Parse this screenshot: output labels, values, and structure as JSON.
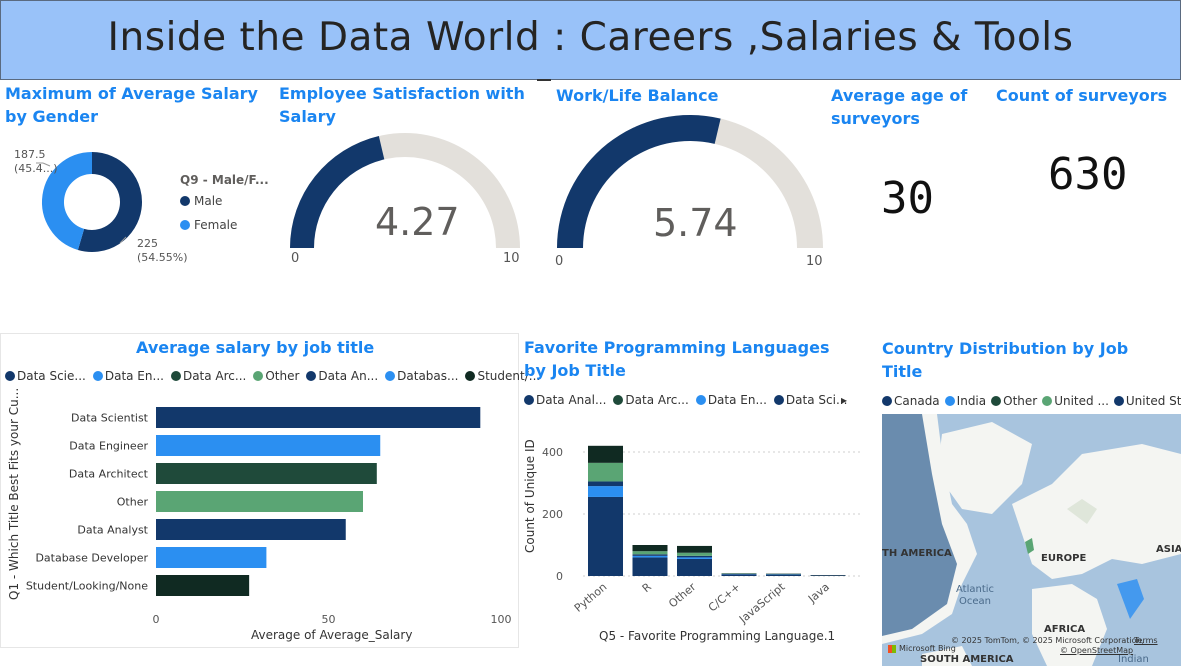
{
  "header": {
    "title": "Inside the Data World : Careers ,Salaries & Tools"
  },
  "colors": {
    "navy": "#12386b",
    "blue": "#2b8ff1",
    "dark_green": "#1f4a3a",
    "green": "#5aa574",
    "black_green": "#102a22",
    "grey": "#e3e0db"
  },
  "donut": {
    "title": "Maximum of Average Salary by Gender",
    "legend_title": "Q9 - Male/F...",
    "labels": [
      {
        "name": "Male",
        "value": "225",
        "pct": "(54.55%)"
      },
      {
        "name": "Female",
        "value": "187.5",
        "pct": "(45.4...)"
      }
    ]
  },
  "gauge_satisfaction": {
    "title": "Employee Satisfaction with Salary",
    "value_text": "4.27",
    "min": "0",
    "max": "10",
    "value": 4.27
  },
  "gauge_balance": {
    "title": "Work/Life Balance",
    "value_text": "5.74",
    "min": "0",
    "max": "10",
    "value": 5.74
  },
  "kpi_age": {
    "title": "Average age of surveyors",
    "value": "30"
  },
  "kpi_count": {
    "title": "Count of surveyors",
    "value": "630"
  },
  "salary_chart": {
    "title": "Average salary by job title",
    "legend": [
      "Data Scie...",
      "Data En...",
      "Data Arc...",
      "Other",
      "Data An...",
      "Databas...",
      "Student/..."
    ],
    "ylabel": "Q1 - Which Title Best Fits your Cu...",
    "xlabel": "Average of Average_Salary",
    "ticks": [
      "0",
      "50",
      "100"
    ]
  },
  "lang_chart": {
    "title": "Favorite Programming Languages by Job Title",
    "legend": [
      "Data Anal...",
      "Data Arc...",
      "Data En...",
      "Data Sci..."
    ],
    "ylabel": "Count of Unique ID",
    "xlabel": "Q5 - Favorite Programming Language.1",
    "ticks": [
      "0",
      "200",
      "400"
    ]
  },
  "map_chart": {
    "title": "Country Distribution by Job Title",
    "legend": [
      "Canada",
      "India",
      "Other",
      "United ...",
      "United St..."
    ],
    "labels": {
      "america": "TH AMERICA",
      "europe": "EUROPE",
      "asia": "ASIA",
      "atlantic": "Atlantic\nOcean",
      "africa": "AFRICA",
      "south_america": "SOUTH AMERICA",
      "indian": "Indian"
    },
    "bing": "Microsoft Bing",
    "copyright": "© 2025 TomTom, © 2025 Microsoft Corporation,",
    "terms": "Terms",
    "osm": "© OpenStreetMap"
  },
  "chart_data": [
    {
      "type": "pie",
      "title": "Maximum of Average Salary by Gender",
      "categories": [
        "Male",
        "Female"
      ],
      "values": [
        225,
        187.5
      ],
      "legend": "Q9 - Male/F..."
    },
    {
      "type": "bar",
      "orientation": "horizontal",
      "title": "Average salary by job title",
      "categories": [
        "Data Scientist",
        "Data Engineer",
        "Data Architect",
        "Other",
        "Data Analyst",
        "Database Developer",
        "Student/Looking/None"
      ],
      "values": [
        94,
        65,
        64,
        60,
        55,
        32,
        27
      ],
      "colors": [
        "#12386b",
        "#2b8ff1",
        "#1f4a3a",
        "#5aa574",
        "#12386b",
        "#2b8ff1",
        "#102a22"
      ],
      "xlabel": "Average of Average_Salary",
      "ylabel": "Q1 - Which Title Best Fits your Cu...",
      "xlim": [
        0,
        100
      ]
    },
    {
      "type": "bar",
      "stacked": true,
      "title": "Favorite Programming Languages by Job Title",
      "categories": [
        "Python",
        "R",
        "Other",
        "C/C++",
        "JavaScript",
        "Java"
      ],
      "series": [
        {
          "name": "Data Sci...",
          "color": "#12386b",
          "values": [
            255,
            60,
            55,
            5,
            5,
            2
          ]
        },
        {
          "name": "Data En...",
          "color": "#2b8ff1",
          "values": [
            35,
            5,
            5,
            1,
            1,
            0
          ]
        },
        {
          "name": "Data Arc...",
          "color": "#12386b",
          "values": [
            15,
            5,
            5,
            1,
            0,
            0
          ]
        },
        {
          "name": "Data Anal...",
          "color": "#5aa574",
          "values": [
            60,
            10,
            10,
            1,
            1,
            0
          ]
        },
        {
          "name": "Student/...",
          "color": "#102a22",
          "values": [
            55,
            20,
            22,
            1,
            1,
            1
          ]
        }
      ],
      "xlabel": "Q5 - Favorite Programming Language.1",
      "ylabel": "Count of Unique ID",
      "ylim": [
        0,
        480
      ]
    }
  ]
}
